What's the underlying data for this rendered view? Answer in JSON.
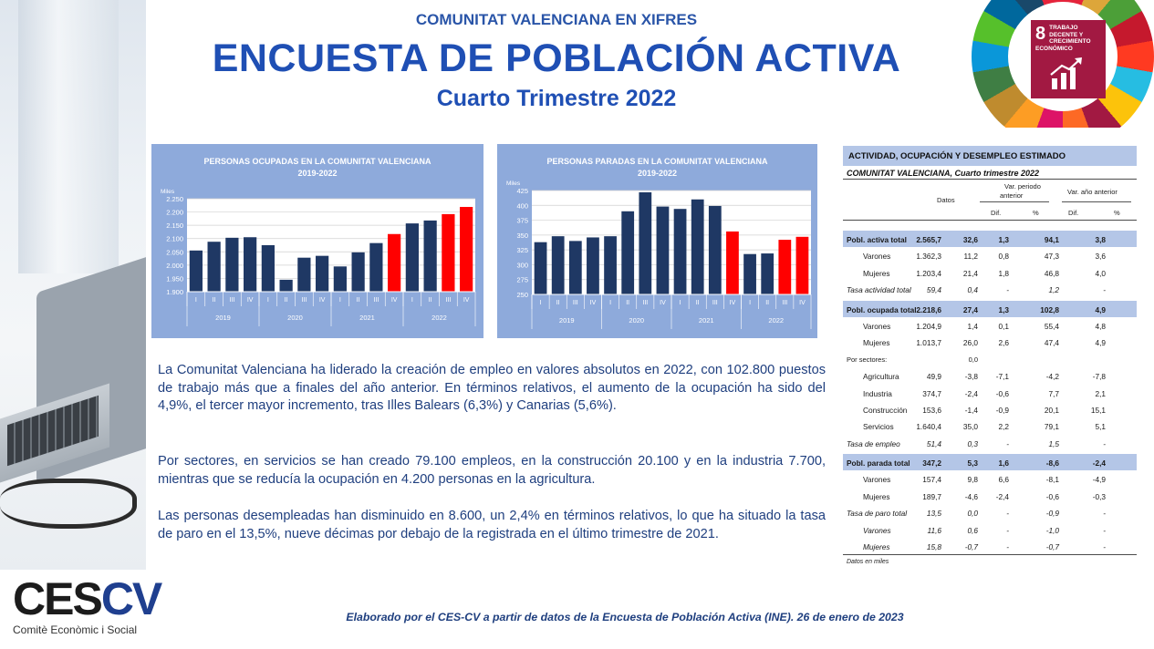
{
  "header": {
    "kicker": "COMUNITAT VALENCIANA EN XIFRES",
    "title": "ENCUESTA DE POBLACIÓN ACTIVA",
    "subtitle": "Cuarto Trimestre 2022"
  },
  "sdg": {
    "number": "8",
    "text": "TRABAJO DECENTE Y CRECIMIENTO ECONÓMICO"
  },
  "logo": {
    "mark_a": "CES",
    "mark_b": "CV",
    "sub": "Comitè Econòmic i Social"
  },
  "chart_data": [
    {
      "type": "bar",
      "title": "PERSONAS OCUPADAS EN LA COMUNITAT VALENCIANA",
      "subtitle": "2019-2022",
      "ylabel": "Miles",
      "ylim": [
        1900,
        2250
      ],
      "yticks": [
        "1.900",
        "1.950",
        "2.000",
        "2.050",
        "2.100",
        "2.150",
        "2.200",
        "2.250"
      ],
      "quarters": [
        "I",
        "II",
        "III",
        "IV",
        "I",
        "II",
        "III",
        "IV",
        "I",
        "II",
        "III",
        "IV",
        "I",
        "II",
        "III",
        "IV"
      ],
      "years": [
        "2019",
        "2020",
        "2021",
        "2022"
      ],
      "values": [
        2055,
        2088,
        2103,
        2105,
        2075,
        1945,
        2028,
        2035,
        1995,
        2048,
        2083,
        2117,
        2157,
        2168,
        2192,
        2219
      ],
      "highlight_color": "#ff0000",
      "bar_color": "#1f3864",
      "highlight_indices": [
        11,
        14,
        15
      ]
    },
    {
      "type": "bar",
      "title": "PERSONAS PARADAS EN LA COMUNITAT VALENCIANA",
      "subtitle": "2019-2022",
      "ylabel": "Miles",
      "ylim": [
        250,
        425
      ],
      "yticks": [
        "250",
        "275",
        "300",
        "325",
        "350",
        "375",
        "400",
        "425"
      ],
      "quarters": [
        "I",
        "II",
        "III",
        "IV",
        "I",
        "II",
        "III",
        "IV",
        "I",
        "II",
        "III",
        "IV",
        "I",
        "II",
        "III",
        "IV"
      ],
      "years": [
        "2019",
        "2020",
        "2021",
        "2022"
      ],
      "values": [
        338,
        348,
        340,
        346,
        348,
        390,
        422,
        398,
        394,
        410,
        399,
        356,
        318,
        319,
        342,
        347
      ],
      "highlight_color": "#ff0000",
      "bar_color": "#1f3864",
      "highlight_indices": [
        11,
        14,
        15
      ]
    }
  ],
  "paragraphs": [
    "La Comunitat Valenciana ha liderado la creación de empleo en valores absolutos en 2022, con 102.800 puestos de trabajo más que a finales del año anterior. En términos relativos, el aumento de la ocupación ha sido del 4,9%, el tercer mayor incremento, tras Illes Balears (6,3%) y Canarias (5,6%).",
    "Por sectores, en servicios se han creado 79.100 empleos, en la construcción 20.100 y en la industria 7.700, mientras que se reducía la ocupación en 4.200 personas en la agricultura.",
    "Las personas desempleadas han disminuido en 8.600, un 2,4% en términos relativos, lo que ha situado la tasa de paro en el 13,5%, nueve décimas por debajo de la registrada en el último trimestre de 2021."
  ],
  "table": {
    "title": "ACTIVIDAD, OCUPACIÓN Y DESEMPLEO ESTIMADO",
    "subtitle": "COMUNITAT  VALENCIANA, Cuarto trimestre 2022",
    "col_datos": "Datos",
    "col_var_periodo": "Var. periodo",
    "col_var_periodo2": "anterior",
    "col_var_anual": "Var. año anterior",
    "col_dif": "Dif.",
    "col_pct": "%",
    "rows": [
      {
        "label": "Pobl. activa total",
        "datos": "2.565,7",
        "d1": "32,6",
        "p1": "1,3",
        "d2": "94,1",
        "p2": "3,8",
        "style": "band"
      },
      {
        "label": "Varones",
        "datos": "1.362,3",
        "d1": "11,2",
        "p1": "0,8",
        "d2": "47,3",
        "p2": "3,6",
        "style": "ind"
      },
      {
        "label": "Mujeres",
        "datos": "1.203,4",
        "d1": "21,4",
        "p1": "1,8",
        "d2": "46,8",
        "p2": "4,0",
        "style": "ind"
      },
      {
        "label": "Tasa actividad total",
        "datos": "59,4",
        "d1": "0,4",
        "p1": "-",
        "d2": "1,2",
        "p2": "-",
        "style": "it"
      },
      {
        "label": "Pobl. ocupada total",
        "datos": "2.218,6",
        "d1": "27,4",
        "p1": "1,3",
        "d2": "102,8",
        "p2": "4,9",
        "style": "band"
      },
      {
        "label": "Varones",
        "datos": "1.204,9",
        "d1": "1,4",
        "p1": "0,1",
        "d2": "55,4",
        "p2": "4,8",
        "style": "ind"
      },
      {
        "label": "Mujeres",
        "datos": "1.013,7",
        "d1": "26,0",
        "p1": "2,6",
        "d2": "47,4",
        "p2": "4,9",
        "style": "ind"
      },
      {
        "label": "Por sectores:",
        "datos": "",
        "d1": "0,0",
        "p1": "",
        "d2": "",
        "p2": "",
        "style": "sm"
      },
      {
        "label": "Agricultura",
        "datos": "49,9",
        "d1": "-3,8",
        "p1": "-7,1",
        "d2": "-4,2",
        "p2": "-7,8",
        "style": "ind"
      },
      {
        "label": "Industria",
        "datos": "374,7",
        "d1": "-2,4",
        "p1": "-0,6",
        "d2": "7,7",
        "p2": "2,1",
        "style": "ind"
      },
      {
        "label": "Construcción",
        "datos": "153,6",
        "d1": "-1,4",
        "p1": "-0,9",
        "d2": "20,1",
        "p2": "15,1",
        "style": "ind"
      },
      {
        "label": "Servicios",
        "datos": "1.640,4",
        "d1": "35,0",
        "p1": "2,2",
        "d2": "79,1",
        "p2": "5,1",
        "style": "ind"
      },
      {
        "label": "Tasa de empleo",
        "datos": "51,4",
        "d1": "0,3",
        "p1": "-",
        "d2": "1,5",
        "p2": "-",
        "style": "it"
      },
      {
        "label": "Pobl. parada total",
        "datos": "347,2",
        "d1": "5,3",
        "p1": "1,6",
        "d2": "-8,6",
        "p2": "-2,4",
        "style": "band"
      },
      {
        "label": "Varones",
        "datos": "157,4",
        "d1": "9,8",
        "p1": "6,6",
        "d2": "-8,1",
        "p2": "-4,9",
        "style": "ind"
      },
      {
        "label": "Mujeres",
        "datos": "189,7",
        "d1": "-4,6",
        "p1": "-2,4",
        "d2": "-0,6",
        "p2": "-0,3",
        "style": "ind"
      },
      {
        "label": "Tasa de paro total",
        "datos": "13,5",
        "d1": "0,0",
        "p1": "-",
        "d2": "-0,9",
        "p2": "-",
        "style": "it"
      },
      {
        "label": "Varones",
        "datos": "11,6",
        "d1": "0,6",
        "p1": "-",
        "d2": "-1,0",
        "p2": "-",
        "style": "it ind"
      },
      {
        "label": "Mujeres",
        "datos": "15,8",
        "d1": "-0,7",
        "p1": "-",
        "d2": "-0,7",
        "p2": "-",
        "style": "it ind"
      }
    ],
    "note": "Datos en miles"
  },
  "footer": "Elaborado por el CES-CV a partir de datos de la Encuesta de Población Activa (INE). 26 de enero de 2023"
}
